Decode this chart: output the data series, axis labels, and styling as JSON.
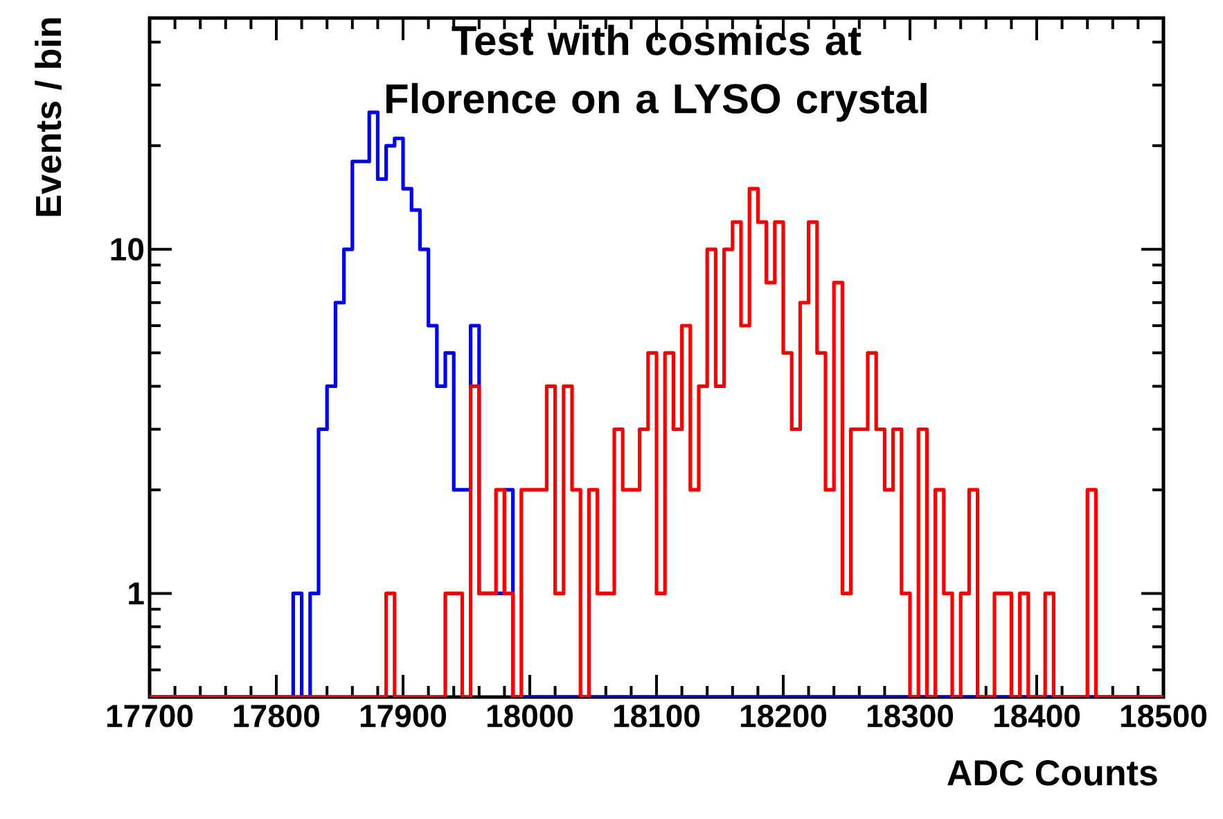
{
  "chart_data": {
    "type": "histogram",
    "title": "Test with cosmics at Florence on a LYSO crystal",
    "xlabel": "ADC Counts",
    "ylabel": "Events / bin",
    "log": "y",
    "bins": [
      17700,
      17706.67,
      17713.33,
      17720,
      17726.67,
      17733.33,
      17740,
      17746.67,
      17753.33,
      17760,
      17766.67,
      17773.33,
      17780,
      17786.67,
      17793.33,
      17800,
      17806.67,
      17813.33,
      17820,
      17826.67,
      17833.33,
      17840,
      17846.67,
      17853.33,
      17860,
      17866.67,
      17873.33,
      17880,
      17886.67,
      17893.33,
      17900,
      17906.67,
      17913.33,
      17920,
      17926.67,
      17933.33,
      17940,
      17946.67,
      17953.33,
      17960,
      17966.67,
      17973.33,
      17980,
      17986.67,
      17993.33,
      18000,
      18006.67,
      18013.33,
      18020,
      18026.67,
      18033.33,
      18040,
      18046.67,
      18053.33,
      18060,
      18066.67,
      18073.33,
      18080,
      18086.67,
      18093.33,
      18100,
      18106.67,
      18113.33,
      18120,
      18126.67,
      18133.33,
      18140,
      18146.67,
      18153.33,
      18160,
      18166.67,
      18173.33,
      18180,
      18186.67,
      18193.33,
      18200,
      18206.67,
      18213.33,
      18220,
      18226.67,
      18233.33,
      18240,
      18246.67,
      18253.33,
      18260,
      18266.67,
      18273.33,
      18280,
      18286.67,
      18293.33,
      18300,
      18306.67,
      18313.33,
      18320,
      18326.67,
      18333.33,
      18340,
      18346.67,
      18353.33,
      18360,
      18366.67,
      18373.33,
      18380,
      18386.67,
      18393.33,
      18400,
      18406.67,
      18413.33,
      18420,
      18426.67,
      18433.33,
      18440,
      18446.67,
      18453.33,
      18460,
      18466.67,
      18473.33,
      18480,
      18486.67,
      18493.33,
      18500
    ],
    "series": [
      {
        "color": "#0000ff",
        "values": [
          null,
          null,
          null,
          null,
          null,
          null,
          null,
          null,
          null,
          null,
          null,
          null,
          null,
          null,
          null,
          null,
          null,
          1,
          null,
          1,
          3,
          4,
          7,
          10,
          18,
          18,
          25,
          16,
          20,
          21,
          15,
          13,
          10,
          6,
          4,
          5,
          2,
          2,
          6,
          1,
          1,
          1,
          2,
          null,
          null,
          null,
          null,
          null,
          null,
          null,
          null,
          null,
          null,
          null,
          null,
          null,
          null,
          null,
          null,
          null,
          null,
          null,
          null,
          null,
          null,
          null,
          null,
          null,
          null,
          null,
          null,
          null,
          null,
          null,
          null,
          null,
          null,
          null,
          null,
          null,
          null,
          null,
          null,
          null,
          null,
          null,
          null,
          null,
          null,
          null,
          null,
          null,
          null,
          null,
          null,
          null,
          null,
          null,
          null,
          null,
          null,
          null,
          null,
          null,
          null,
          null,
          null,
          null,
          null,
          null,
          null,
          null,
          null,
          null,
          null,
          null,
          null,
          null,
          null,
          null
        ]
      },
      {
        "color": "#ff0000",
        "values": [
          null,
          null,
          null,
          null,
          null,
          null,
          null,
          null,
          null,
          null,
          null,
          null,
          null,
          null,
          null,
          null,
          null,
          null,
          null,
          null,
          null,
          null,
          null,
          null,
          null,
          null,
          null,
          null,
          1,
          null,
          null,
          null,
          null,
          null,
          null,
          1,
          1,
          null,
          4,
          1,
          1,
          2,
          1,
          null,
          2,
          2,
          2,
          4,
          1,
          4,
          2,
          null,
          2,
          1,
          1,
          3,
          2,
          2,
          3,
          5,
          1,
          5,
          3,
          6,
          2,
          4,
          10,
          4,
          10,
          12,
          6,
          15,
          12,
          8,
          12,
          5,
          3,
          7,
          12,
          5,
          2,
          8,
          1,
          3,
          3,
          5,
          3,
          2,
          3,
          1,
          null,
          3,
          null,
          2,
          1,
          null,
          1,
          2,
          null,
          null,
          1,
          1,
          null,
          1,
          null,
          null,
          1,
          null,
          null,
          null,
          null,
          2,
          null,
          null,
          null,
          null,
          null,
          null,
          null,
          null
        ]
      }
    ],
    "xlim": [
      17700,
      18500
    ],
    "ylim": [
      0.5,
      47
    ],
    "xticks": [
      17700,
      17800,
      17900,
      18000,
      18100,
      18200,
      18300,
      18400,
      18500
    ],
    "yticks": [
      1,
      10
    ]
  }
}
